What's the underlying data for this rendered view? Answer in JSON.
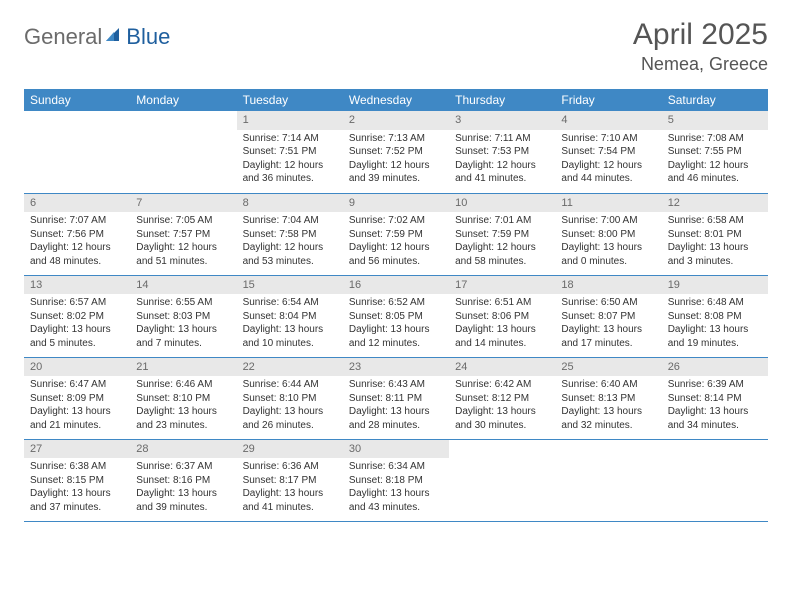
{
  "brand": {
    "part1": "General",
    "part2": "Blue"
  },
  "colors": {
    "accent": "#3f88c5",
    "header_text": "#ffffff",
    "daynum_bg": "#e8e8e8",
    "daynum_fg": "#6a6a6a",
    "body_text": "#333333",
    "title_fg": "#555555",
    "logo_gray": "#6b6b6b",
    "logo_blue": "#1f5f9e"
  },
  "title": "April 2025",
  "location": "Nemea, Greece",
  "weekdays": [
    "Sunday",
    "Monday",
    "Tuesday",
    "Wednesday",
    "Thursday",
    "Friday",
    "Saturday"
  ],
  "weeks": [
    [
      null,
      null,
      {
        "n": "1",
        "sr": "Sunrise: 7:14 AM",
        "ss": "Sunset: 7:51 PM",
        "dl": "Daylight: 12 hours and 36 minutes."
      },
      {
        "n": "2",
        "sr": "Sunrise: 7:13 AM",
        "ss": "Sunset: 7:52 PM",
        "dl": "Daylight: 12 hours and 39 minutes."
      },
      {
        "n": "3",
        "sr": "Sunrise: 7:11 AM",
        "ss": "Sunset: 7:53 PM",
        "dl": "Daylight: 12 hours and 41 minutes."
      },
      {
        "n": "4",
        "sr": "Sunrise: 7:10 AM",
        "ss": "Sunset: 7:54 PM",
        "dl": "Daylight: 12 hours and 44 minutes."
      },
      {
        "n": "5",
        "sr": "Sunrise: 7:08 AM",
        "ss": "Sunset: 7:55 PM",
        "dl": "Daylight: 12 hours and 46 minutes."
      }
    ],
    [
      {
        "n": "6",
        "sr": "Sunrise: 7:07 AM",
        "ss": "Sunset: 7:56 PM",
        "dl": "Daylight: 12 hours and 48 minutes."
      },
      {
        "n": "7",
        "sr": "Sunrise: 7:05 AM",
        "ss": "Sunset: 7:57 PM",
        "dl": "Daylight: 12 hours and 51 minutes."
      },
      {
        "n": "8",
        "sr": "Sunrise: 7:04 AM",
        "ss": "Sunset: 7:58 PM",
        "dl": "Daylight: 12 hours and 53 minutes."
      },
      {
        "n": "9",
        "sr": "Sunrise: 7:02 AM",
        "ss": "Sunset: 7:59 PM",
        "dl": "Daylight: 12 hours and 56 minutes."
      },
      {
        "n": "10",
        "sr": "Sunrise: 7:01 AM",
        "ss": "Sunset: 7:59 PM",
        "dl": "Daylight: 12 hours and 58 minutes."
      },
      {
        "n": "11",
        "sr": "Sunrise: 7:00 AM",
        "ss": "Sunset: 8:00 PM",
        "dl": "Daylight: 13 hours and 0 minutes."
      },
      {
        "n": "12",
        "sr": "Sunrise: 6:58 AM",
        "ss": "Sunset: 8:01 PM",
        "dl": "Daylight: 13 hours and 3 minutes."
      }
    ],
    [
      {
        "n": "13",
        "sr": "Sunrise: 6:57 AM",
        "ss": "Sunset: 8:02 PM",
        "dl": "Daylight: 13 hours and 5 minutes."
      },
      {
        "n": "14",
        "sr": "Sunrise: 6:55 AM",
        "ss": "Sunset: 8:03 PM",
        "dl": "Daylight: 13 hours and 7 minutes."
      },
      {
        "n": "15",
        "sr": "Sunrise: 6:54 AM",
        "ss": "Sunset: 8:04 PM",
        "dl": "Daylight: 13 hours and 10 minutes."
      },
      {
        "n": "16",
        "sr": "Sunrise: 6:52 AM",
        "ss": "Sunset: 8:05 PM",
        "dl": "Daylight: 13 hours and 12 minutes."
      },
      {
        "n": "17",
        "sr": "Sunrise: 6:51 AM",
        "ss": "Sunset: 8:06 PM",
        "dl": "Daylight: 13 hours and 14 minutes."
      },
      {
        "n": "18",
        "sr": "Sunrise: 6:50 AM",
        "ss": "Sunset: 8:07 PM",
        "dl": "Daylight: 13 hours and 17 minutes."
      },
      {
        "n": "19",
        "sr": "Sunrise: 6:48 AM",
        "ss": "Sunset: 8:08 PM",
        "dl": "Daylight: 13 hours and 19 minutes."
      }
    ],
    [
      {
        "n": "20",
        "sr": "Sunrise: 6:47 AM",
        "ss": "Sunset: 8:09 PM",
        "dl": "Daylight: 13 hours and 21 minutes."
      },
      {
        "n": "21",
        "sr": "Sunrise: 6:46 AM",
        "ss": "Sunset: 8:10 PM",
        "dl": "Daylight: 13 hours and 23 minutes."
      },
      {
        "n": "22",
        "sr": "Sunrise: 6:44 AM",
        "ss": "Sunset: 8:10 PM",
        "dl": "Daylight: 13 hours and 26 minutes."
      },
      {
        "n": "23",
        "sr": "Sunrise: 6:43 AM",
        "ss": "Sunset: 8:11 PM",
        "dl": "Daylight: 13 hours and 28 minutes."
      },
      {
        "n": "24",
        "sr": "Sunrise: 6:42 AM",
        "ss": "Sunset: 8:12 PM",
        "dl": "Daylight: 13 hours and 30 minutes."
      },
      {
        "n": "25",
        "sr": "Sunrise: 6:40 AM",
        "ss": "Sunset: 8:13 PM",
        "dl": "Daylight: 13 hours and 32 minutes."
      },
      {
        "n": "26",
        "sr": "Sunrise: 6:39 AM",
        "ss": "Sunset: 8:14 PM",
        "dl": "Daylight: 13 hours and 34 minutes."
      }
    ],
    [
      {
        "n": "27",
        "sr": "Sunrise: 6:38 AM",
        "ss": "Sunset: 8:15 PM",
        "dl": "Daylight: 13 hours and 37 minutes."
      },
      {
        "n": "28",
        "sr": "Sunrise: 6:37 AM",
        "ss": "Sunset: 8:16 PM",
        "dl": "Daylight: 13 hours and 39 minutes."
      },
      {
        "n": "29",
        "sr": "Sunrise: 6:36 AM",
        "ss": "Sunset: 8:17 PM",
        "dl": "Daylight: 13 hours and 41 minutes."
      },
      {
        "n": "30",
        "sr": "Sunrise: 6:34 AM",
        "ss": "Sunset: 8:18 PM",
        "dl": "Daylight: 13 hours and 43 minutes."
      },
      null,
      null,
      null
    ]
  ]
}
